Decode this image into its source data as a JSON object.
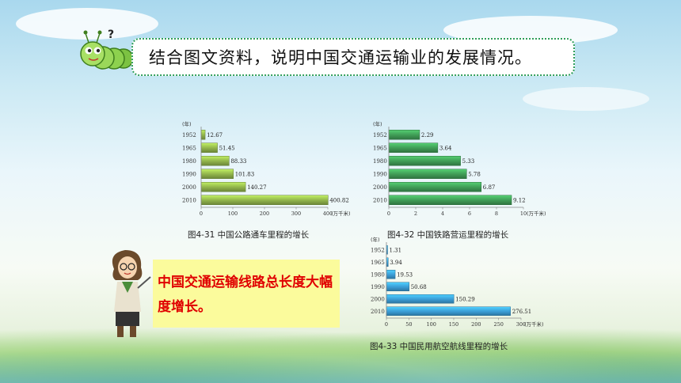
{
  "question": "结合图文资料，说明中国交通运输业的发展情况。",
  "answer": "中国交通运输线路总长度大幅度增长。",
  "captions": {
    "road": "图4-31  中国公路通车里程的增长",
    "rail": "图4-32  中国铁路营运里程的增长",
    "air": "图4-33  中国民用航空航线里程的增长"
  },
  "colors": {
    "road": "#8fb24a",
    "rail": "#3f9a55",
    "air": "#3a9bd4",
    "border": "#2f9e5a",
    "answer_bg": "#fbfb9c",
    "answer_text": "#e00000"
  },
  "chart_data": [
    {
      "id": "road",
      "type": "bar",
      "orientation": "horizontal",
      "ylabel": "(年)",
      "xunit": "(万千米)",
      "categories": [
        "1952",
        "1965",
        "1980",
        "1990",
        "2000",
        "2010"
      ],
      "values": [
        12.67,
        51.45,
        88.33,
        101.83,
        140.27,
        400.82
      ],
      "value_labels": [
        "12.67",
        "51.45",
        "88.33",
        "101.83",
        "140.27",
        "400.82"
      ],
      "xlim": [
        0,
        400
      ],
      "xticks": [
        "0",
        "100",
        "200",
        "300",
        "400"
      ]
    },
    {
      "id": "rail",
      "type": "bar",
      "orientation": "horizontal",
      "ylabel": "(年)",
      "xunit": "(万千米)",
      "categories": [
        "1952",
        "1965",
        "1980",
        "1990",
        "2000",
        "2010"
      ],
      "values": [
        2.29,
        3.64,
        5.33,
        5.78,
        6.87,
        9.12
      ],
      "value_labels": [
        "2.29",
        "3.64",
        "5.33",
        "5.78",
        "6.87",
        "9.12"
      ],
      "xlim": [
        0,
        10
      ],
      "xticks": [
        "0",
        "2",
        "4",
        "6",
        "8",
        "10"
      ]
    },
    {
      "id": "air",
      "type": "bar",
      "orientation": "horizontal",
      "ylabel": "(年)",
      "xunit": "(万千米)",
      "categories": [
        "1952",
        "1965",
        "1980",
        "1990",
        "2000",
        "2010"
      ],
      "values": [
        1.31,
        3.94,
        19.53,
        50.68,
        150.29,
        276.51
      ],
      "value_labels": [
        "1.31",
        "3.94",
        "19.53",
        "50.68",
        "150.29",
        "276.51"
      ],
      "xlim": [
        0,
        300
      ],
      "xticks": [
        "0",
        "50",
        "100",
        "150",
        "200",
        "250",
        "300"
      ]
    }
  ]
}
